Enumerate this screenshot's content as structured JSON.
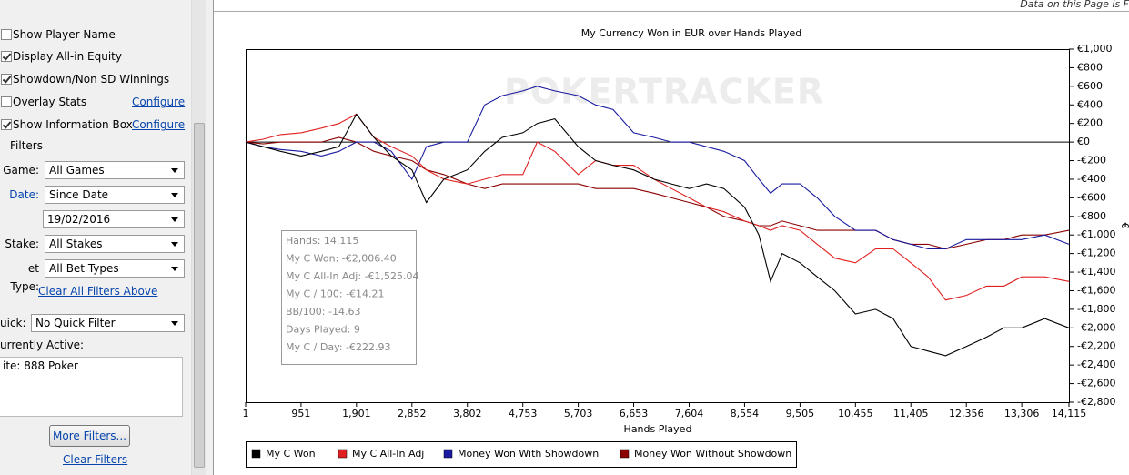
{
  "top_notice": "Data on this Page is F",
  "sidebar": {
    "options": [
      {
        "label": "Show Player Name",
        "checked": false
      },
      {
        "label": "Display All-in Equity",
        "checked": true
      },
      {
        "label": "Showdown/Non SD Winnings",
        "checked": true
      },
      {
        "label": "Overlay Stats",
        "checked": false,
        "link": "Configure"
      },
      {
        "label": "Show Information Box",
        "checked": true,
        "link": "Configure"
      }
    ],
    "filters_title": "Filters",
    "filters": [
      {
        "label": "Game:",
        "value": "All Games"
      },
      {
        "label": "Date:",
        "value": "Since Date"
      },
      {
        "label": "Stake:",
        "value": "All Stakes"
      },
      {
        "label": "et Type:",
        "value": "All Bet Types"
      }
    ],
    "date_value": "19/02/2016",
    "clear_above": "Clear All Filters Above",
    "quick_label": "uick:",
    "quick_value": "No Quick Filter",
    "active_label": "urrently Active:",
    "active_text": "ite: 888 Poker",
    "more_filters": "More Filters...",
    "clear_filters": "Clear Filters"
  },
  "chart_data": {
    "type": "line",
    "title": "My Currency Won in EUR over Hands Played",
    "x_label": "Hands Played",
    "y_label": "€",
    "watermark": "POKERTRACKER",
    "info_box": [
      "Hands: 14,115",
      "My C Won: -€2,006.40",
      "My C All-In Adj: -€1,525.04",
      "My C / 100: -€14.21",
      "BB/100: -14.63",
      "Days Played: 9",
      "My C / Day: -€222.93"
    ],
    "xlim": [
      1,
      14115
    ],
    "xticks": [
      1,
      951,
      {
        "value": 1901,
        "label": "1,901"
      },
      {
        "value": 2852,
        "label": "2,852"
      },
      {
        "value": 3802,
        "label": "3,802"
      },
      {
        "value": 4753,
        "label": "4,753"
      },
      {
        "value": 5703,
        "label": "5,703"
      },
      {
        "value": 6653,
        "label": "6,653"
      },
      {
        "value": 7604,
        "label": "7,604"
      },
      {
        "value": 8554,
        "label": "8,554"
      },
      {
        "value": 9505,
        "label": "9,505"
      },
      {
        "value": 10455,
        "label": "10,455"
      },
      {
        "value": 11405,
        "label": "11,405"
      },
      {
        "value": 12356,
        "label": "12,356"
      },
      {
        "value": 13306,
        "label": "13,306"
      },
      {
        "value": 14115,
        "label": "14,115"
      }
    ],
    "ylim": [
      -2800,
      1000
    ],
    "yticks": [
      {
        "value": 1000,
        "label": "€1,000"
      },
      {
        "value": 800,
        "label": "€800"
      },
      {
        "value": 600,
        "label": "€600"
      },
      {
        "value": 400,
        "label": "€400"
      },
      {
        "value": 200,
        "label": "€200"
      },
      {
        "value": 0,
        "label": "€0"
      },
      {
        "value": -200,
        "label": "-€200"
      },
      {
        "value": -400,
        "label": "-€400"
      },
      {
        "value": -600,
        "label": "-€600"
      },
      {
        "value": -800,
        "label": "-€800"
      },
      {
        "value": -1000,
        "label": "-€1,000"
      },
      {
        "value": -1200,
        "label": "-€1,200"
      },
      {
        "value": -1400,
        "label": "-€1,400"
      },
      {
        "value": -1600,
        "label": "-€1,600"
      },
      {
        "value": -1800,
        "label": "-€1,800"
      },
      {
        "value": -2000,
        "label": "-€2,000"
      },
      {
        "value": -2200,
        "label": "-€2,200"
      },
      {
        "value": -2400,
        "label": "-€2,400"
      },
      {
        "value": -2600,
        "label": "-€2,600"
      },
      {
        "value": -2800,
        "label": "-€2,800"
      }
    ],
    "x": [
      1,
      300,
      600,
      951,
      1300,
      1600,
      1901,
      2200,
      2500,
      2852,
      3100,
      3400,
      3802,
      4100,
      4400,
      4753,
      5000,
      5300,
      5703,
      6000,
      6300,
      6653,
      7000,
      7300,
      7604,
      7900,
      8200,
      8554,
      8800,
      9000,
      9200,
      9505,
      9800,
      10100,
      10455,
      10800,
      11100,
      11405,
      11700,
      12000,
      12356,
      12700,
      13000,
      13306,
      13700,
      14115
    ],
    "series": [
      {
        "name": "My C Won",
        "color": "#000000",
        "values": [
          0,
          -50,
          -100,
          -150,
          -100,
          -50,
          300,
          50,
          -150,
          -300,
          -650,
          -400,
          -300,
          -100,
          50,
          100,
          200,
          250,
          -50,
          -200,
          -250,
          -300,
          -400,
          -450,
          -500,
          -450,
          -500,
          -700,
          -1000,
          -1500,
          -1200,
          -1300,
          -1450,
          -1600,
          -1850,
          -1800,
          -1900,
          -2200,
          -2250,
          -2300,
          -2200,
          -2100,
          -2000,
          -2000,
          -1900,
          -2000
        ]
      },
      {
        "name": "My C All-In Adj",
        "color": "#e02020",
        "values": [
          0,
          30,
          80,
          100,
          150,
          200,
          300,
          50,
          -50,
          -150,
          -300,
          -400,
          -450,
          -400,
          -350,
          -350,
          0,
          -100,
          -350,
          -200,
          -250,
          -250,
          -400,
          -500,
          -600,
          -700,
          -750,
          -850,
          -900,
          -950,
          -900,
          -950,
          -1100,
          -1250,
          -1300,
          -1150,
          -1150,
          -1300,
          -1450,
          -1700,
          -1650,
          -1550,
          -1550,
          -1450,
          -1450,
          -1500
        ]
      },
      {
        "name": "Money Won With Showdown",
        "color": "#1a1aa0",
        "values": [
          0,
          -50,
          -80,
          -100,
          -150,
          -100,
          0,
          0,
          -100,
          -400,
          -50,
          0,
          0,
          400,
          500,
          550,
          600,
          550,
          500,
          400,
          350,
          100,
          50,
          0,
          0,
          -50,
          -100,
          -200,
          -400,
          -550,
          -450,
          -450,
          -600,
          -800,
          -950,
          -950,
          -1050,
          -1100,
          -1150,
          -1150,
          -1050,
          -1050,
          -1050,
          -1050,
          -1000,
          -1100
        ]
      },
      {
        "name": "Money Won Without Showdown",
        "color": "#8b0000",
        "values": [
          0,
          -20,
          0,
          0,
          0,
          50,
          0,
          -100,
          -150,
          -200,
          -300,
          -350,
          -450,
          -500,
          -450,
          -450,
          -450,
          -450,
          -450,
          -500,
          -500,
          -500,
          -550,
          -600,
          -650,
          -700,
          -800,
          -850,
          -900,
          -900,
          -850,
          -900,
          -950,
          -950,
          -950,
          -950,
          -1050,
          -1100,
          -1100,
          -1150,
          -1100,
          -1050,
          -1050,
          -1000,
          -1000,
          -950
        ]
      }
    ]
  }
}
